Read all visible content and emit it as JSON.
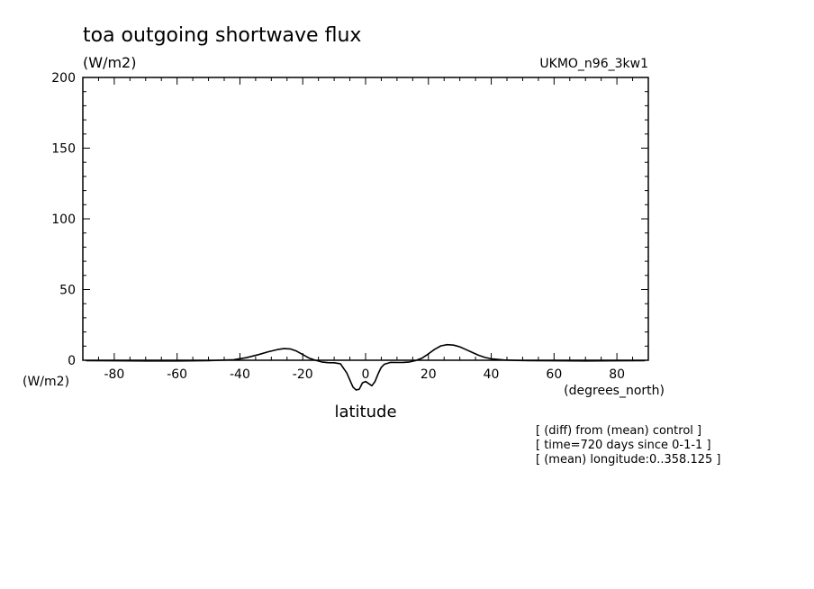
{
  "chart_data": {
    "type": "line",
    "title": "toa outgoing shortwave flux",
    "units_top": "(W/m2)",
    "units_left": "(W/m2)",
    "model_label": "UKMO_n96_3kw1",
    "xlabel": "latitude",
    "xunits": "(degrees_north)",
    "xlim": [
      -90,
      90
    ],
    "ylim": [
      -5,
      200
    ],
    "grid": false,
    "x_ticks": [
      -80,
      -60,
      -40,
      -20,
      0,
      20,
      40,
      60,
      80
    ],
    "x_tick_labels": [
      "-80",
      "-60",
      "-40",
      "-20",
      "0",
      "20",
      "40",
      "60",
      "80"
    ],
    "y_ticks": [
      0,
      50,
      100,
      150,
      200
    ],
    "y_tick_labels": [
      "0",
      "50",
      "100",
      "150",
      "200"
    ],
    "notes": [
      "[ (diff) from (mean) control ]",
      "[ time=720 days since 0-1-1 ]",
      "[ (mean) longitude:0..358.125 ]"
    ],
    "series": [
      {
        "x": [
          -89,
          -80,
          -70,
          -60,
          -50,
          -42,
          -38,
          -34,
          -31,
          -28,
          -26,
          -24,
          -22,
          -20,
          -18,
          -16,
          -14,
          -12,
          -10,
          -8,
          -6,
          -4,
          -3,
          -2,
          -1,
          0,
          1,
          2,
          3,
          4,
          5,
          6,
          8,
          10,
          12,
          14,
          16,
          18,
          20,
          22,
          24,
          26,
          28,
          30,
          32,
          34,
          36,
          38,
          40,
          44,
          48,
          52,
          60,
          70,
          80,
          89
        ],
        "y": [
          -0.3,
          -0.4,
          -0.5,
          -0.5,
          -0.3,
          0.4,
          1.8,
          4,
          6,
          7.6,
          8.2,
          8,
          6.5,
          4,
          1.5,
          0,
          -1.2,
          -1.7,
          -1.8,
          -2.5,
          -9,
          -19,
          -21,
          -20.5,
          -16,
          -15,
          -16.5,
          -18,
          -15,
          -9.5,
          -5,
          -2.8,
          -1.5,
          -1.6,
          -1.5,
          -1.2,
          -0.2,
          1.5,
          4.5,
          7.8,
          10.2,
          11,
          10.7,
          9.5,
          7.5,
          5.5,
          3.5,
          2,
          1,
          0.2,
          -0.1,
          -0.3,
          -0.4,
          -0.5,
          -0.4,
          -0.3
        ]
      }
    ]
  }
}
